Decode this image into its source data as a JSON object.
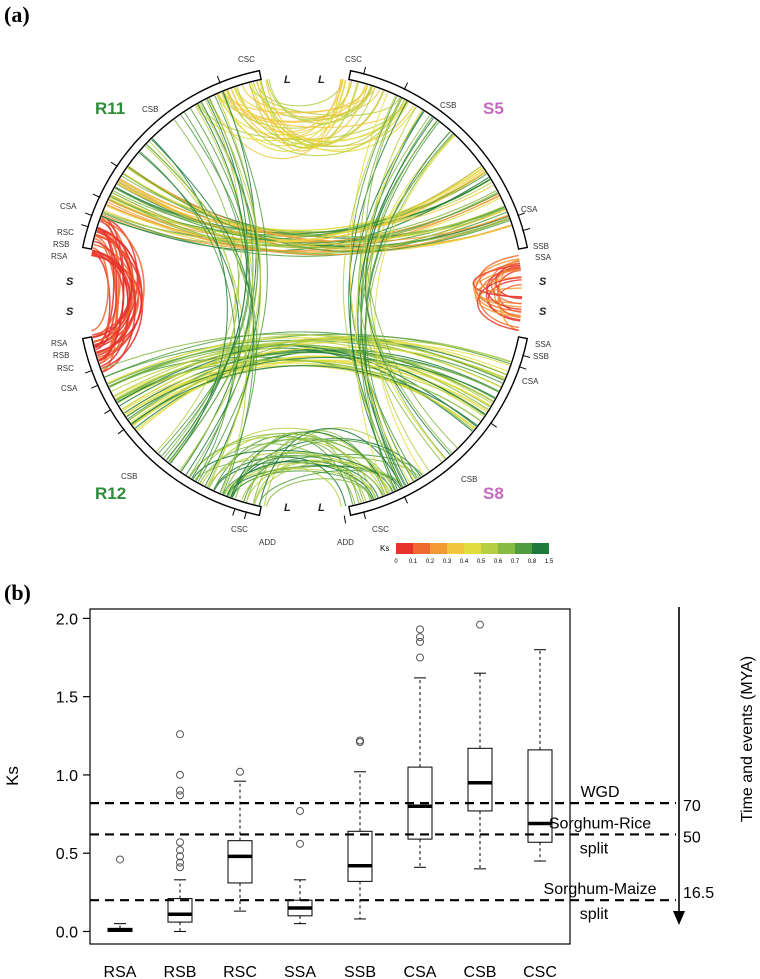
{
  "panel_a": {
    "label": "(a)",
    "quadrants": [
      {
        "name": "R11",
        "color": "#2e8b3a"
      },
      {
        "name": "S5",
        "color": "#c46ac0"
      },
      {
        "name": "R12",
        "color": "#2e8b3a"
      },
      {
        "name": "S8",
        "color": "#c46ac0"
      }
    ],
    "end_labels": {
      "long": "L",
      "short": "S"
    },
    "segment_labels": {
      "csc": "CSC",
      "csb": "CSB",
      "csa": "CSA",
      "rsc": "RSC",
      "rsb": "RSB",
      "rsa": "RSA",
      "ssa": "SSA",
      "ssb": "SSB",
      "add": "ADD"
    },
    "legend": {
      "title": "Ks",
      "ticks": [
        "0",
        "0.1",
        "0.2",
        "0.3",
        "0.4",
        "0.5",
        "0.6",
        "0.7",
        "0.8",
        "1.5"
      ],
      "colors": [
        "#e8332b",
        "#ee6a30",
        "#f19a35",
        "#f2c53c",
        "#e3dc3e",
        "#b6cf43",
        "#86bb45",
        "#4f9c3f",
        "#1d7a3b"
      ]
    }
  },
  "panel_b": {
    "label": "(b)",
    "chart_data": {
      "type": "box",
      "categories": [
        "RSA",
        "RSB",
        "RSC",
        "SSA",
        "SSB",
        "CSA",
        "CSB",
        "CSC"
      ],
      "boxes": [
        {
          "category": "RSA",
          "whisker_low": 0.0,
          "q1": 0.0,
          "median": 0.01,
          "q3": 0.02,
          "whisker_high": 0.05,
          "outliers": [
            0.46
          ]
        },
        {
          "category": "RSB",
          "whisker_low": 0.0,
          "q1": 0.06,
          "median": 0.11,
          "q3": 0.21,
          "whisker_high": 0.33,
          "outliers": [
            0.41,
            0.44,
            0.48,
            0.52,
            0.57,
            0.87,
            0.9,
            1.0,
            1.26
          ]
        },
        {
          "category": "RSC",
          "whisker_low": 0.13,
          "q1": 0.31,
          "median": 0.48,
          "q3": 0.58,
          "whisker_high": 0.96,
          "outliers": [
            1.02
          ]
        },
        {
          "category": "SSA",
          "whisker_low": 0.05,
          "q1": 0.1,
          "median": 0.15,
          "q3": 0.2,
          "whisker_high": 0.33,
          "outliers": [
            0.56,
            0.77
          ]
        },
        {
          "category": "SSB",
          "whisker_low": 0.08,
          "q1": 0.32,
          "median": 0.42,
          "q3": 0.64,
          "whisker_high": 1.02,
          "outliers": [
            1.21,
            1.22
          ]
        },
        {
          "category": "CSA",
          "whisker_low": 0.41,
          "q1": 0.59,
          "median": 0.8,
          "q3": 1.05,
          "whisker_high": 1.62,
          "outliers": [
            1.75,
            1.85,
            1.88,
            1.93
          ]
        },
        {
          "category": "CSB",
          "whisker_low": 0.4,
          "q1": 0.77,
          "median": 0.95,
          "q3": 1.17,
          "whisker_high": 1.65,
          "outliers": [
            1.96
          ]
        },
        {
          "category": "CSC",
          "whisker_low": 0.45,
          "q1": 0.57,
          "median": 0.69,
          "q3": 1.16,
          "whisker_high": 1.8,
          "outliers": []
        }
      ],
      "ylabel": "Ks",
      "xlabel": "",
      "ylim": [
        -0.08,
        2.06
      ],
      "yticks": [
        0.0,
        0.5,
        1.0,
        1.5,
        2.0
      ],
      "ytick_labels": [
        "0.0",
        "0.5",
        "1.0",
        "1.5",
        "2.0"
      ],
      "reference_lines": [
        {
          "y": 0.82,
          "label": "WGD",
          "time": "70"
        },
        {
          "y": 0.62,
          "label": "Sorghum-Rice split",
          "label_lines": [
            "Sorghum-Rice",
            "split"
          ],
          "time": "50"
        },
        {
          "y": 0.2,
          "label": "Sorghum-Maize split",
          "label_lines": [
            "Sorghum-Maize",
            "split"
          ],
          "time": "16.5"
        }
      ],
      "time_axis_label": "Time and events (MYA)"
    }
  }
}
